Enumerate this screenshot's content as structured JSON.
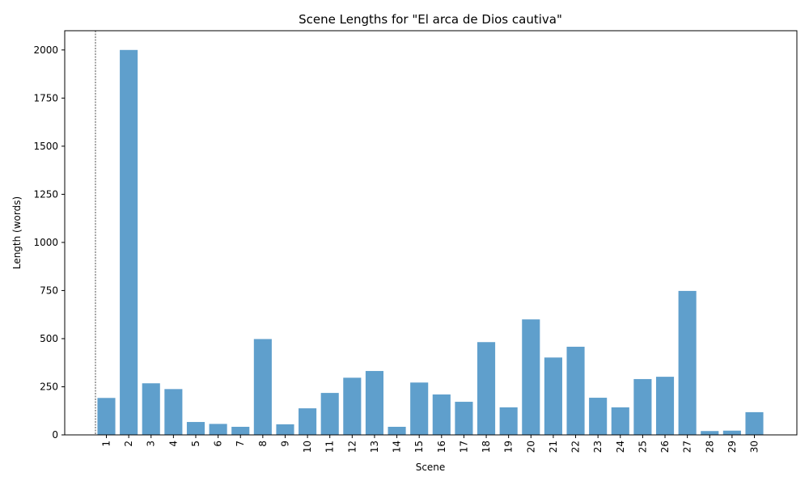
{
  "chart_data": {
    "type": "bar",
    "title": "Scene Lengths for \"El arca de Dios cautiva\"",
    "xlabel": "Scene",
    "ylabel": "Length (words)",
    "categories": [
      "1",
      "2",
      "3",
      "4",
      "5",
      "6",
      "7",
      "8",
      "9",
      "10",
      "11",
      "12",
      "13",
      "14",
      "15",
      "16",
      "17",
      "18",
      "19",
      "20",
      "21",
      "22",
      "23",
      "24",
      "25",
      "26",
      "27",
      "28",
      "29",
      "30"
    ],
    "values": [
      192,
      2000,
      268,
      238,
      67,
      57,
      42,
      498,
      55,
      138,
      218,
      297,
      332,
      42,
      272,
      210,
      172,
      482,
      143,
      600,
      402,
      458,
      193,
      143,
      290,
      302,
      748,
      20,
      22,
      118
    ],
    "ylim": [
      0,
      2100
    ],
    "yticks": [
      0,
      250,
      500,
      750,
      1000,
      1250,
      1500,
      1750,
      2000
    ],
    "bar_color": "#5f9fcc",
    "grid": false,
    "reference_line": {
      "style": "dashed",
      "color": "#000000"
    }
  }
}
